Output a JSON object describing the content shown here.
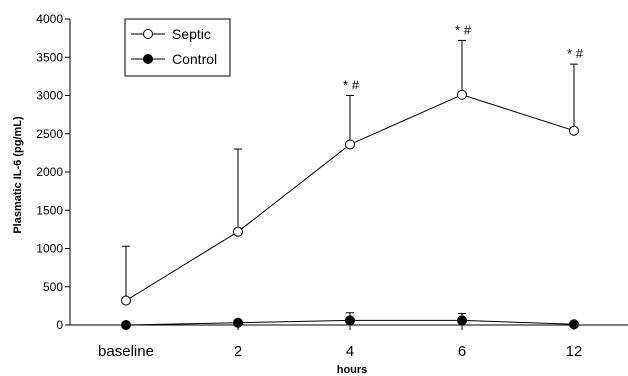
{
  "chart_data": {
    "type": "line",
    "categories": [
      "baseline",
      "2",
      "4",
      "6",
      "12"
    ],
    "xlabel": "hours",
    "ylabel": "Plasmatic IL-6 (pg/mL)",
    "ylim": [
      0,
      4000
    ],
    "yticks": [
      0,
      500,
      1000,
      1500,
      2000,
      2500,
      3000,
      3500,
      4000
    ],
    "grid": false,
    "legend_position": "top-left",
    "series": [
      {
        "name": "Septic",
        "marker": "open-circle",
        "values": [
          320,
          1220,
          2360,
          3010,
          2540
        ],
        "error_upper": [
          1030,
          2300,
          3000,
          3720,
          3410
        ],
        "annotations": [
          "",
          "",
          "* #",
          "* #",
          "* #"
        ]
      },
      {
        "name": "Control",
        "marker": "filled-circle",
        "values": [
          0,
          30,
          60,
          60,
          10
        ],
        "error_upper": [
          0,
          50,
          160,
          150,
          20
        ],
        "annotations": [
          "",
          "",
          "",
          "",
          ""
        ]
      }
    ]
  }
}
